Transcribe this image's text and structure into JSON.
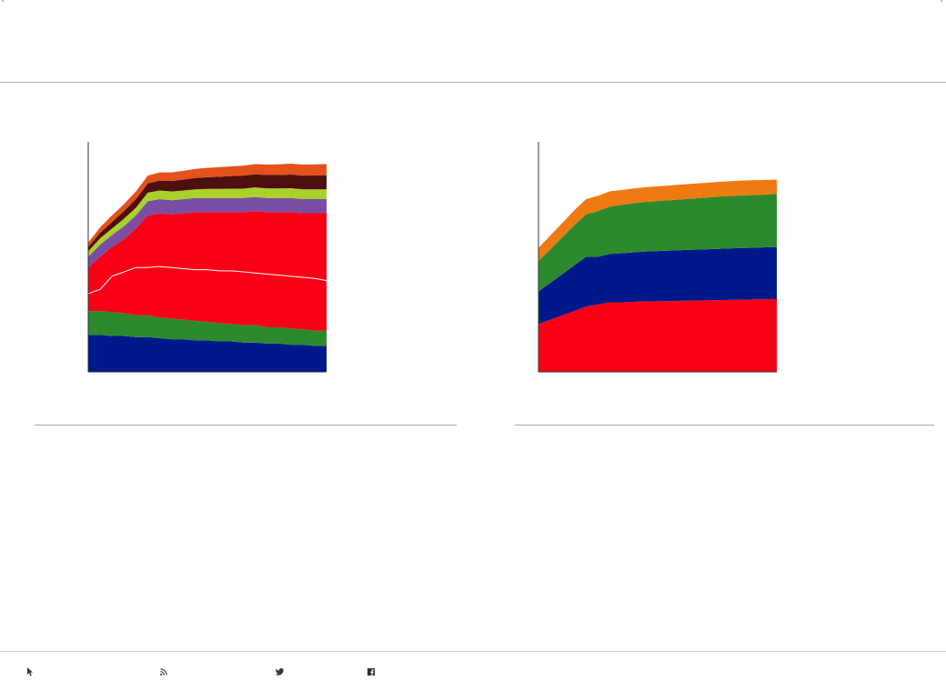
{
  "chart_data": [
    {
      "type": "area",
      "stacked": true,
      "title": "",
      "xlabel": "",
      "ylabel": "",
      "x": [
        0,
        5,
        10,
        15,
        20,
        25,
        30,
        35,
        40,
        45,
        50,
        55,
        60,
        65,
        70,
        75,
        80,
        85,
        90,
        95,
        100
      ],
      "ylim": [
        0,
        100
      ],
      "grid": false,
      "series": [
        {
          "color": "#00198a",
          "values": [
            17,
            17,
            16.5,
            16.5,
            16,
            16,
            15.5,
            15,
            15,
            14.5,
            14.5,
            14,
            14,
            13.5,
            13.5,
            13,
            13,
            12.5,
            12.5,
            12,
            12
          ]
        },
        {
          "color": "#2c8a2e",
          "values": [
            11,
            11,
            11,
            10.5,
            10,
            10,
            9.5,
            9.5,
            9,
            9,
            8.5,
            8.5,
            8,
            8,
            8,
            7.5,
            7.5,
            7.5,
            7,
            7,
            7
          ]
        },
        {
          "color": "#f90017",
          "values": [
            20,
            25,
            30,
            34,
            40,
            46,
            48,
            48,
            49,
            50,
            50.5,
            51,
            51.5,
            52,
            52.5,
            53,
            53,
            53.5,
            53.5,
            54,
            54
          ]
        },
        {
          "color": "#7a4fa3",
          "values": [
            5,
            5.5,
            5.5,
            6,
            6,
            6.5,
            6.5,
            6.5,
            6.5,
            6.5,
            6.5,
            6.5,
            6.5,
            6.5,
            6.5,
            6.5,
            6.5,
            6.5,
            6.5,
            6.5,
            6.5
          ]
        },
        {
          "color": "#a9d12a",
          "values": [
            2.5,
            3,
            3,
            3.5,
            3.5,
            4,
            4,
            4,
            4,
            4,
            4.2,
            4.2,
            4.3,
            4.3,
            4.4,
            4.4,
            4.4,
            4.5,
            4.5,
            4.5,
            4.5
          ]
        },
        {
          "color": "#4e0f0f",
          "values": [
            2,
            2.5,
            3,
            3.5,
            4,
            4.2,
            4.5,
            4.8,
            5,
            5.2,
            5.4,
            5.6,
            5.8,
            6,
            6,
            6.2,
            6.2,
            6.3,
            6.3,
            6.4,
            6.4
          ]
        },
        {
          "color": "#e3521a",
          "values": [
            2,
            2.5,
            3,
            3.2,
            3.5,
            3.6,
            3.8,
            4,
            4,
            4.2,
            4.3,
            4.4,
            4.5,
            4.6,
            4.7,
            4.8,
            4.9,
            5,
            5.1,
            5.1,
            5.2
          ]
        }
      ],
      "overlay_line": {
        "color": "#ffffff",
        "values": [
          36,
          38,
          44,
          46,
          48,
          48,
          48.5,
          48,
          47.5,
          47,
          47,
          46.5,
          46.5,
          46,
          45.5,
          45,
          44.5,
          44,
          43.5,
          43,
          42
        ]
      }
    },
    {
      "type": "area",
      "stacked": true,
      "title": "",
      "xlabel": "",
      "ylabel": "",
      "x": [
        0,
        5,
        10,
        15,
        20,
        25,
        30,
        35,
        40,
        45,
        50,
        55,
        60,
        65,
        70,
        75,
        80,
        85,
        90,
        95,
        100
      ],
      "ylim": [
        0,
        100
      ],
      "grid": false,
      "series": [
        {
          "color": "#f90017",
          "values": [
            22,
            24,
            26,
            28,
            30,
            31,
            32,
            32,
            32.2,
            32.4,
            32.5,
            32.6,
            32.7,
            32.8,
            32.9,
            33,
            33.1,
            33.2,
            33.3,
            33.4,
            33.5
          ]
        },
        {
          "color": "#00198a",
          "values": [
            15,
            17,
            19,
            21,
            23,
            22,
            22.3,
            22.6,
            22.8,
            23,
            23.1,
            23.2,
            23.3,
            23.4,
            23.5,
            23.6,
            23.7,
            23.8,
            23.8,
            23.9,
            24
          ]
        },
        {
          "color": "#2c8a2e",
          "values": [
            14,
            15.5,
            17,
            18.5,
            19.5,
            21,
            21.8,
            22.3,
            22.6,
            22.8,
            23,
            23.2,
            23.4,
            23.6,
            23.8,
            24,
            24.1,
            24.2,
            24.3,
            24.3,
            24.4
          ]
        },
        {
          "color": "#ef7a12",
          "values": [
            6,
            6.3,
            6.5,
            6.8,
            7,
            7,
            7,
            6.8,
            6.8,
            6.8,
            6.8,
            6.8,
            6.8,
            6.8,
            6.8,
            6.8,
            6.8,
            6.8,
            6.8,
            6.7,
            6.6
          ]
        }
      ]
    }
  ],
  "footer_icons": [
    "cursor-icon",
    "rss-icon",
    "twitter-icon",
    "facebook-icon"
  ],
  "axis_color": "#333333"
}
